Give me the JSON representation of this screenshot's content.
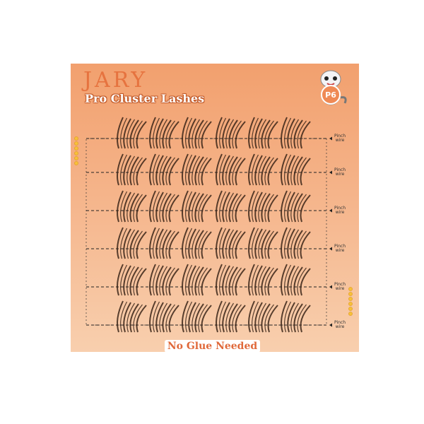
{
  "product": {
    "brand": "JARY",
    "subtitle": "Pro Cluster Lashes",
    "badge": "P6",
    "tagline": "No Glue Needed"
  },
  "pinch_labels": [
    "Pinch wire",
    "Pinch wire",
    "Pinch wire",
    "Pinch wire",
    "Pinch wire",
    "Pinch wire"
  ],
  "colors": {
    "panel_top": "#f2a06e",
    "panel_bottom": "#f8cfae",
    "accent": "#e6733f",
    "lash": "#3a2418"
  }
}
